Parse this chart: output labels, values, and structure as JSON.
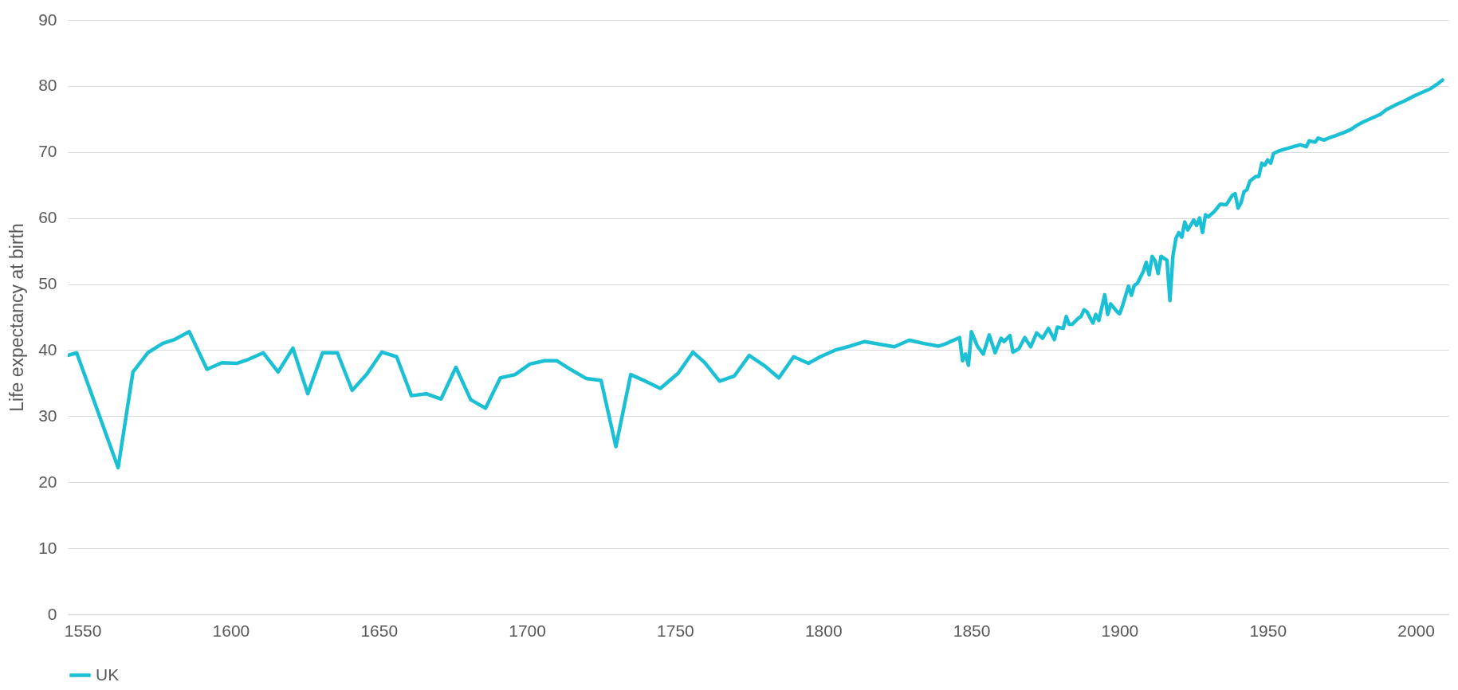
{
  "chart_data": {
    "type": "line",
    "ylabel": "Life expectancy at birth",
    "xlim": [
      1545,
      2011
    ],
    "xticks": [
      1550,
      1600,
      1650,
      1700,
      1750,
      1800,
      1850,
      1900,
      1950,
      2000
    ],
    "ylim": [
      0,
      90
    ],
    "yticks": [
      0,
      10,
      20,
      30,
      40,
      50,
      60,
      70,
      80,
      90
    ],
    "grid": "y",
    "legend": "bottom",
    "marker": "none",
    "line_style": "solid",
    "x": [
      1545,
      1548,
      1562,
      1567,
      1572,
      1577,
      1581,
      1586,
      1592,
      1597,
      1602,
      1606,
      1611,
      1616,
      1621,
      1626,
      1631,
      1636,
      1641,
      1646,
      1651,
      1656,
      1661,
      1666,
      1671,
      1676,
      1681,
      1686,
      1691,
      1696,
      1701,
      1706,
      1710,
      1715,
      1720,
      1725,
      1730,
      1735,
      1740,
      1745,
      1751,
      1756,
      1760,
      1765,
      1770,
      1775,
      1780,
      1785,
      1790,
      1795,
      1799,
      1804,
      1809,
      1814,
      1819,
      1824,
      1829,
      1834,
      1839,
      1841,
      1843,
      1846,
      1847,
      1848,
      1849,
      1850,
      1852,
      1854,
      1856,
      1858,
      1860,
      1861,
      1863,
      1864,
      1866,
      1868,
      1870,
      1872,
      1874,
      1876,
      1878,
      1879,
      1881,
      1882,
      1883,
      1884,
      1886,
      1887,
      1888,
      1889,
      1891,
      1892,
      1893,
      1895,
      1896,
      1897,
      1899,
      1900,
      1901,
      1903,
      1904,
      1905,
      1906,
      1907,
      1908,
      1909,
      1910,
      1911,
      1912,
      1913,
      1914,
      1916,
      1917,
      1918,
      1919,
      1920,
      1921,
      1922,
      1923,
      1924,
      1925,
      1926,
      1927,
      1928,
      1929,
      1930,
      1932,
      1934,
      1936,
      1938,
      1939,
      1940,
      1941,
      1942,
      1943,
      1944,
      1946,
      1947,
      1948,
      1949,
      1950,
      1951,
      1952,
      1954,
      1957,
      1961,
      1963,
      1964,
      1966,
      1967,
      1969,
      1971,
      1973,
      1976,
      1978,
      1980,
      1982,
      1985,
      1988,
      1990,
      1993,
      1996,
      1999,
      2003,
      2005,
      2007,
      2009
    ],
    "series": [
      {
        "name": "UK",
        "color": "#1cc0d4",
        "values": [
          39.2,
          39.6,
          22.2,
          36.7,
          39.6,
          41.0,
          41.6,
          42.8,
          37.1,
          38.1,
          38.0,
          38.6,
          39.6,
          36.7,
          40.3,
          33.4,
          39.6,
          39.6,
          33.9,
          36.4,
          39.7,
          39.0,
          33.1,
          33.4,
          32.6,
          37.4,
          32.5,
          31.2,
          35.8,
          36.3,
          37.9,
          38.4,
          38.4,
          37.0,
          35.7,
          35.4,
          25.4,
          36.3,
          35.3,
          34.2,
          36.5,
          39.7,
          38.1,
          35.3,
          36.1,
          39.2,
          37.7,
          35.8,
          39.0,
          38.0,
          39.0,
          40.0,
          40.6,
          41.3,
          40.9,
          40.5,
          41.5,
          41.0,
          40.6,
          40.9,
          41.3,
          41.9,
          38.4,
          39.4,
          37.7,
          42.8,
          40.6,
          39.4,
          42.3,
          39.6,
          41.8,
          41.3,
          42.2,
          39.7,
          40.2,
          41.9,
          40.5,
          42.6,
          41.8,
          43.3,
          41.6,
          43.5,
          43.3,
          45.1,
          43.9,
          43.9,
          44.8,
          45.1,
          46.1,
          45.8,
          44.1,
          45.4,
          44.5,
          48.4,
          45.4,
          47.0,
          45.9,
          45.5,
          46.7,
          49.7,
          48.3,
          49.8,
          50.1,
          51.0,
          51.9,
          53.3,
          51.4,
          54.2,
          53.5,
          51.6,
          54.2,
          53.6,
          47.5,
          54.2,
          56.9,
          57.8,
          57.1,
          59.4,
          58.2,
          58.9,
          59.7,
          58.9,
          60.0,
          57.8,
          60.5,
          60.2,
          61.0,
          62.1,
          62.0,
          63.4,
          63.7,
          61.5,
          62.3,
          64.0,
          64.3,
          65.6,
          66.3,
          66.3,
          68.3,
          68.0,
          68.8,
          68.3,
          69.8,
          70.2,
          70.6,
          71.1,
          70.8,
          71.7,
          71.5,
          72.1,
          71.8,
          72.2,
          72.5,
          73.0,
          73.4,
          74.0,
          74.5,
          75.1,
          75.7,
          76.4,
          77.1,
          77.7,
          78.4,
          79.2,
          79.6,
          80.2,
          80.9
        ]
      }
    ]
  }
}
